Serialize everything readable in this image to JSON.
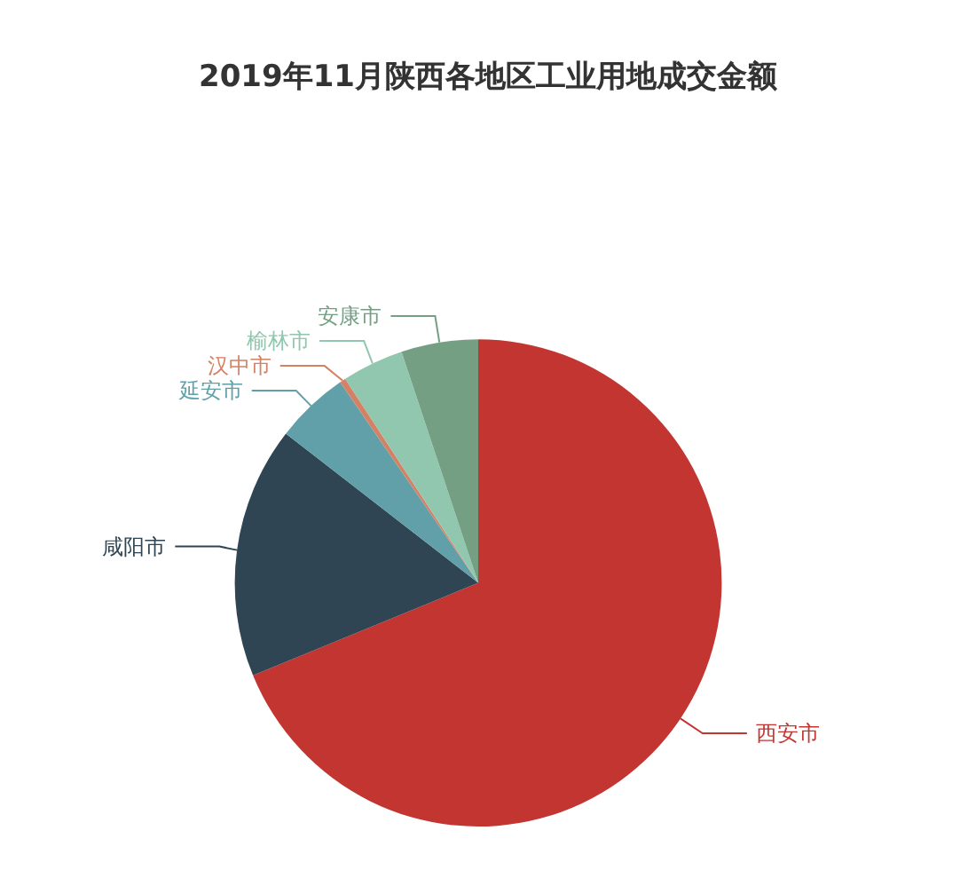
{
  "chart_data": {
    "type": "pie",
    "title": "2019年11月陕西各地区工业用地成交金额",
    "categories": [
      "西安市",
      "咸阳市",
      "延安市",
      "汉中市",
      "榆林市",
      "安康市"
    ],
    "values": [
      68.8,
      16.7,
      4.9,
      0.4,
      4.1,
      5.1
    ],
    "colors": [
      "#c23531",
      "#2f4554",
      "#61a0a8",
      "#d48265",
      "#91c7ae",
      "#749f83"
    ],
    "legend": false
  }
}
